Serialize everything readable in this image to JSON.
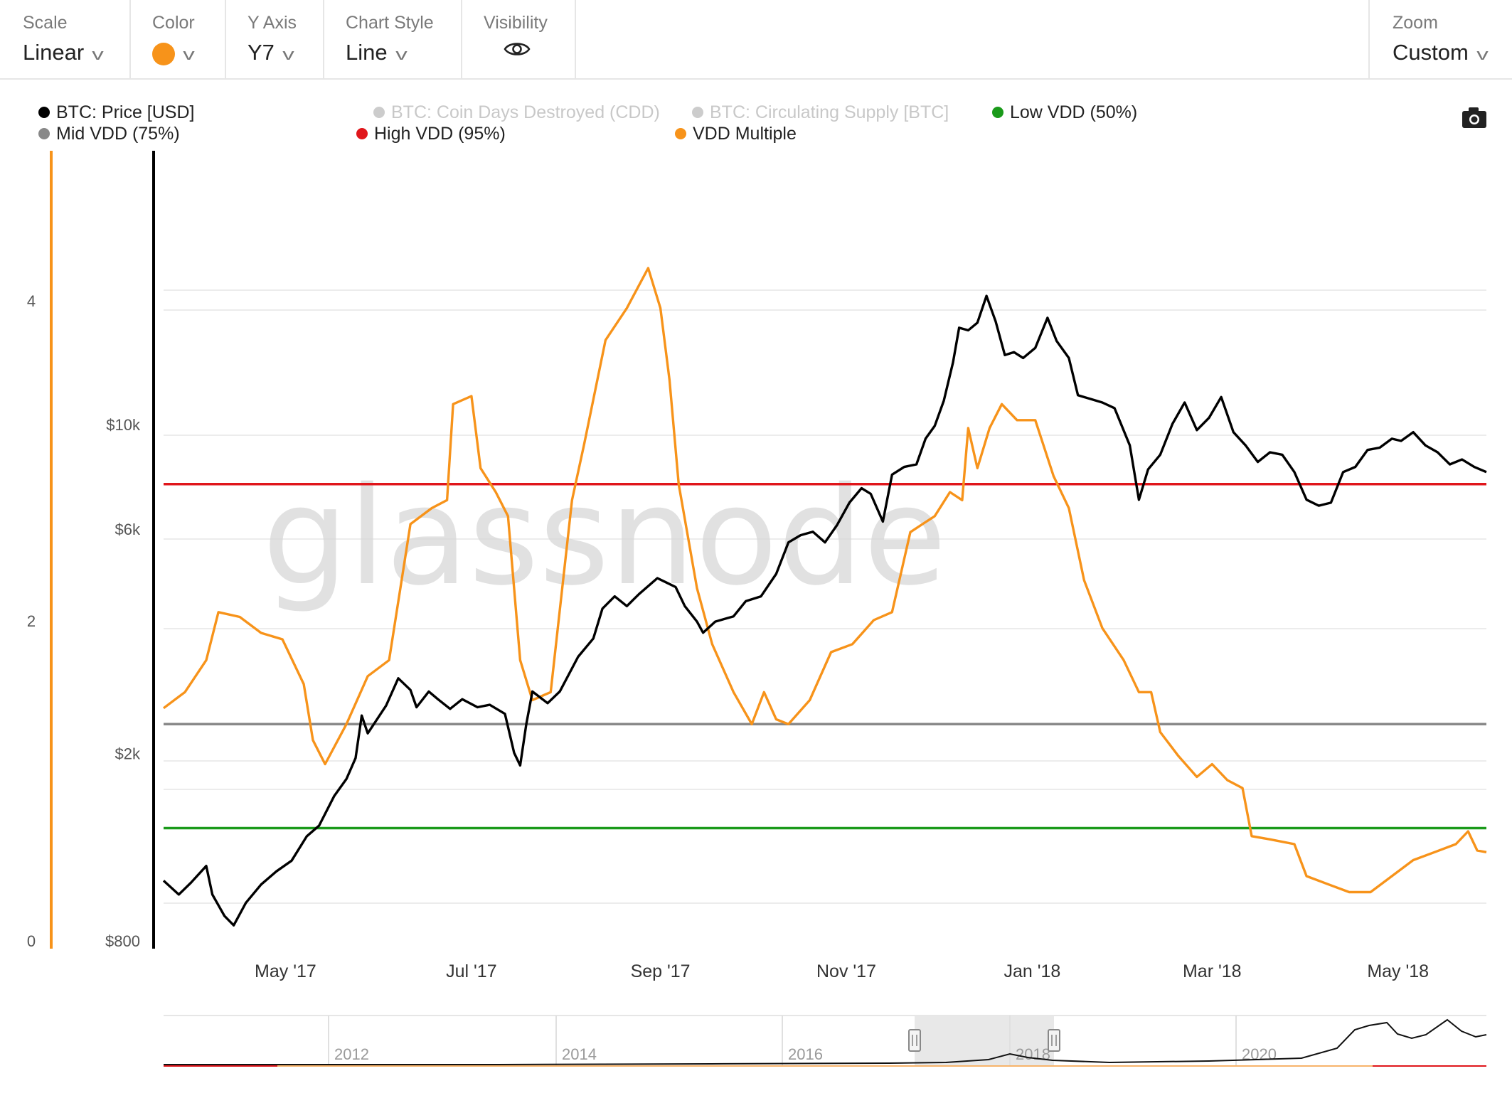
{
  "toolbar": {
    "scale": {
      "label": "Scale",
      "value": "Linear"
    },
    "color": {
      "label": "Color",
      "value": "#f7931a"
    },
    "y_axis": {
      "label": "Y Axis",
      "value": "Y7"
    },
    "chart_style": {
      "label": "Chart Style",
      "value": "Line"
    },
    "visibility": {
      "label": "Visibility",
      "icon": "eye-icon"
    },
    "zoom": {
      "label": "Zoom",
      "value": "Custom"
    }
  },
  "watermark": "glassnode",
  "camera_icon": "camera-icon",
  "chart_data": {
    "type": "line",
    "legend": [
      {
        "name": "BTC: Price [USD]",
        "color": "#000000",
        "active": true
      },
      {
        "name": "BTC: Coin Days Destroyed (CDD)",
        "color": "#cccccc",
        "active": false
      },
      {
        "name": "BTC: Circulating Supply [BTC]",
        "color": "#cccccc",
        "active": false
      },
      {
        "name": "Low VDD (50%)",
        "color": "#1a9a1a",
        "active": true
      },
      {
        "name": "Mid VDD (75%)",
        "color": "#888888",
        "active": true
      },
      {
        "name": "High VDD (95%)",
        "color": "#e0161b",
        "active": true
      },
      {
        "name": "VDD Multiple",
        "color": "#f7931a",
        "active": true
      }
    ],
    "x_ticks": [
      "May '17",
      "Jul '17",
      "Sep '17",
      "Nov '17",
      "Jan '18",
      "Mar '18",
      "May '18"
    ],
    "x_range": [
      "2017-03-22",
      "2018-05-30"
    ],
    "left_axis": {
      "ticks": [
        0,
        2,
        4
      ],
      "range": [
        0,
        4
      ]
    },
    "price_axis": {
      "scale": "log",
      "ticks": [
        "$800",
        "$2k",
        "$6k",
        "$10k"
      ],
      "tick_values": [
        800,
        2000,
        6000,
        10000
      ],
      "range": [
        800,
        20000
      ]
    },
    "thresholds": [
      {
        "name": "Low VDD (50%)",
        "value": 0.7
      },
      {
        "name": "Mid VDD (75%)",
        "value": 1.35
      },
      {
        "name": "High VDD (95%)",
        "value": 2.85
      }
    ],
    "series": [
      {
        "name": "VDD Multiple",
        "axis": "left",
        "points": [
          [
            "2017-03-22",
            1.45
          ],
          [
            "2017-03-29",
            1.55
          ],
          [
            "2017-04-05",
            1.75
          ],
          [
            "2017-04-09",
            2.05
          ],
          [
            "2017-04-16",
            2.02
          ],
          [
            "2017-04-23",
            1.92
          ],
          [
            "2017-04-30",
            1.88
          ],
          [
            "2017-05-07",
            1.6
          ],
          [
            "2017-05-10",
            1.25
          ],
          [
            "2017-05-14",
            1.1
          ],
          [
            "2017-05-21",
            1.35
          ],
          [
            "2017-05-28",
            1.65
          ],
          [
            "2017-06-04",
            1.75
          ],
          [
            "2017-06-11",
            2.6
          ],
          [
            "2017-06-18",
            2.7
          ],
          [
            "2017-06-23",
            2.75
          ],
          [
            "2017-06-25",
            3.35
          ],
          [
            "2017-07-01",
            3.4
          ],
          [
            "2017-07-04",
            2.95
          ],
          [
            "2017-07-09",
            2.8
          ],
          [
            "2017-07-13",
            2.65
          ],
          [
            "2017-07-17",
            1.75
          ],
          [
            "2017-07-21",
            1.5
          ],
          [
            "2017-07-27",
            1.55
          ],
          [
            "2017-08-03",
            2.75
          ],
          [
            "2017-08-07",
            3.1
          ],
          [
            "2017-08-14",
            3.75
          ],
          [
            "2017-08-21",
            3.95
          ],
          [
            "2017-08-28",
            4.2
          ],
          [
            "2017-09-01",
            3.95
          ],
          [
            "2017-09-04",
            3.5
          ],
          [
            "2017-09-07",
            2.85
          ],
          [
            "2017-09-13",
            2.2
          ],
          [
            "2017-09-18",
            1.85
          ],
          [
            "2017-09-25",
            1.55
          ],
          [
            "2017-10-01",
            1.35
          ],
          [
            "2017-10-05",
            1.55
          ],
          [
            "2017-10-09",
            1.38
          ],
          [
            "2017-10-13",
            1.35
          ],
          [
            "2017-10-20",
            1.5
          ],
          [
            "2017-10-27",
            1.8
          ],
          [
            "2017-11-03",
            1.85
          ],
          [
            "2017-11-10",
            2.0
          ],
          [
            "2017-11-16",
            2.05
          ],
          [
            "2017-11-22",
            2.55
          ],
          [
            "2017-11-26",
            2.6
          ],
          [
            "2017-11-30",
            2.65
          ],
          [
            "2017-12-05",
            2.8
          ],
          [
            "2017-12-09",
            2.75
          ],
          [
            "2017-12-11",
            3.2
          ],
          [
            "2017-12-14",
            2.95
          ],
          [
            "2017-12-18",
            3.2
          ],
          [
            "2017-12-22",
            3.35
          ],
          [
            "2017-12-27",
            3.25
          ],
          [
            "2018-01-02",
            3.25
          ],
          [
            "2018-01-08",
            2.9
          ],
          [
            "2018-01-13",
            2.7
          ],
          [
            "2018-01-18",
            2.25
          ],
          [
            "2018-01-24",
            1.95
          ],
          [
            "2018-01-31",
            1.75
          ],
          [
            "2018-02-05",
            1.55
          ],
          [
            "2018-02-09",
            1.55
          ],
          [
            "2018-02-12",
            1.3
          ],
          [
            "2018-02-18",
            1.15
          ],
          [
            "2018-02-24",
            1.02
          ],
          [
            "2018-03-01",
            1.1
          ],
          [
            "2018-03-06",
            1.0
          ],
          [
            "2018-03-11",
            0.95
          ],
          [
            "2018-03-14",
            0.65
          ],
          [
            "2018-03-20",
            0.63
          ],
          [
            "2018-03-28",
            0.6
          ],
          [
            "2018-04-01",
            0.4
          ],
          [
            "2018-04-08",
            0.35
          ],
          [
            "2018-04-15",
            0.3
          ],
          [
            "2018-04-22",
            0.3
          ],
          [
            "2018-04-29",
            0.4
          ],
          [
            "2018-05-06",
            0.5
          ],
          [
            "2018-05-13",
            0.55
          ],
          [
            "2018-05-20",
            0.6
          ],
          [
            "2018-05-24",
            0.68
          ],
          [
            "2018-05-27",
            0.56
          ],
          [
            "2018-05-30",
            0.55
          ]
        ]
      },
      {
        "name": "BTC: Price [USD]",
        "axis": "price",
        "points": [
          [
            "2017-03-22",
            1070
          ],
          [
            "2017-03-27",
            1000
          ],
          [
            "2017-03-31",
            1060
          ],
          [
            "2017-04-05",
            1150
          ],
          [
            "2017-04-07",
            1000
          ],
          [
            "2017-04-11",
            900
          ],
          [
            "2017-04-14",
            860
          ],
          [
            "2017-04-18",
            960
          ],
          [
            "2017-04-23",
            1050
          ],
          [
            "2017-04-28",
            1120
          ],
          [
            "2017-05-03",
            1180
          ],
          [
            "2017-05-08",
            1330
          ],
          [
            "2017-05-12",
            1400
          ],
          [
            "2017-05-17",
            1620
          ],
          [
            "2017-05-21",
            1760
          ],
          [
            "2017-05-24",
            1950
          ],
          [
            "2017-05-26",
            2400
          ],
          [
            "2017-05-28",
            2200
          ],
          [
            "2017-06-03",
            2520
          ],
          [
            "2017-06-07",
            2880
          ],
          [
            "2017-06-11",
            2720
          ],
          [
            "2017-06-13",
            2500
          ],
          [
            "2017-06-17",
            2700
          ],
          [
            "2017-06-20",
            2600
          ],
          [
            "2017-06-24",
            2480
          ],
          [
            "2017-06-28",
            2600
          ],
          [
            "2017-07-03",
            2500
          ],
          [
            "2017-07-07",
            2530
          ],
          [
            "2017-07-12",
            2420
          ],
          [
            "2017-07-15",
            2000
          ],
          [
            "2017-07-17",
            1880
          ],
          [
            "2017-07-19",
            2300
          ],
          [
            "2017-07-21",
            2700
          ],
          [
            "2017-07-26",
            2550
          ],
          [
            "2017-07-30",
            2700
          ],
          [
            "2017-08-05",
            3200
          ],
          [
            "2017-08-10",
            3500
          ],
          [
            "2017-08-13",
            4050
          ],
          [
            "2017-08-17",
            4300
          ],
          [
            "2017-08-21",
            4100
          ],
          [
            "2017-08-25",
            4350
          ],
          [
            "2017-08-31",
            4700
          ],
          [
            "2017-09-03",
            4600
          ],
          [
            "2017-09-06",
            4500
          ],
          [
            "2017-09-09",
            4100
          ],
          [
            "2017-09-13",
            3800
          ],
          [
            "2017-09-15",
            3600
          ],
          [
            "2017-09-19",
            3800
          ],
          [
            "2017-09-25",
            3900
          ],
          [
            "2017-09-29",
            4200
          ],
          [
            "2017-10-04",
            4300
          ],
          [
            "2017-10-09",
            4800
          ],
          [
            "2017-10-13",
            5600
          ],
          [
            "2017-10-17",
            5800
          ],
          [
            "2017-10-21",
            5900
          ],
          [
            "2017-10-25",
            5600
          ],
          [
            "2017-10-29",
            6100
          ],
          [
            "2017-11-02",
            6800
          ],
          [
            "2017-11-06",
            7300
          ],
          [
            "2017-11-09",
            7100
          ],
          [
            "2017-11-13",
            6200
          ],
          [
            "2017-11-16",
            7800
          ],
          [
            "2017-11-20",
            8100
          ],
          [
            "2017-11-24",
            8200
          ],
          [
            "2017-11-27",
            9300
          ],
          [
            "2017-11-30",
            9900
          ],
          [
            "2017-12-03",
            11200
          ],
          [
            "2017-12-06",
            13500
          ],
          [
            "2017-12-08",
            16000
          ],
          [
            "2017-12-11",
            15800
          ],
          [
            "2017-12-14",
            16400
          ],
          [
            "2017-12-17",
            18700
          ],
          [
            "2017-12-20",
            16500
          ],
          [
            "2017-12-23",
            14000
          ],
          [
            "2017-12-26",
            14200
          ],
          [
            "2017-12-29",
            13800
          ],
          [
            "2018-01-02",
            14500
          ],
          [
            "2018-01-06",
            16800
          ],
          [
            "2018-01-09",
            15000
          ],
          [
            "2018-01-13",
            13800
          ],
          [
            "2018-01-16",
            11500
          ],
          [
            "2018-01-20",
            11300
          ],
          [
            "2018-01-24",
            11100
          ],
          [
            "2018-01-28",
            10800
          ],
          [
            "2018-02-02",
            9000
          ],
          [
            "2018-02-05",
            6900
          ],
          [
            "2018-02-08",
            8000
          ],
          [
            "2018-02-12",
            8600
          ],
          [
            "2018-02-16",
            10000
          ],
          [
            "2018-02-20",
            11100
          ],
          [
            "2018-02-24",
            9700
          ],
          [
            "2018-02-28",
            10300
          ],
          [
            "2018-03-04",
            11400
          ],
          [
            "2018-03-08",
            9600
          ],
          [
            "2018-03-12",
            9000
          ],
          [
            "2018-03-16",
            8300
          ],
          [
            "2018-03-20",
            8700
          ],
          [
            "2018-03-24",
            8600
          ],
          [
            "2018-03-28",
            7900
          ],
          [
            "2018-04-01",
            6900
          ],
          [
            "2018-04-05",
            6700
          ],
          [
            "2018-04-09",
            6800
          ],
          [
            "2018-04-13",
            7900
          ],
          [
            "2018-04-17",
            8100
          ],
          [
            "2018-04-21",
            8800
          ],
          [
            "2018-04-25",
            8900
          ],
          [
            "2018-04-29",
            9300
          ],
          [
            "2018-05-02",
            9200
          ],
          [
            "2018-05-06",
            9600
          ],
          [
            "2018-05-10",
            9000
          ],
          [
            "2018-05-14",
            8700
          ],
          [
            "2018-05-18",
            8200
          ],
          [
            "2018-05-22",
            8400
          ],
          [
            "2018-05-26",
            8100
          ],
          [
            "2018-05-30",
            7900
          ]
        ]
      }
    ],
    "navigator": {
      "years": [
        "2012",
        "2014",
        "2016",
        "2018",
        "2020"
      ]
    }
  }
}
